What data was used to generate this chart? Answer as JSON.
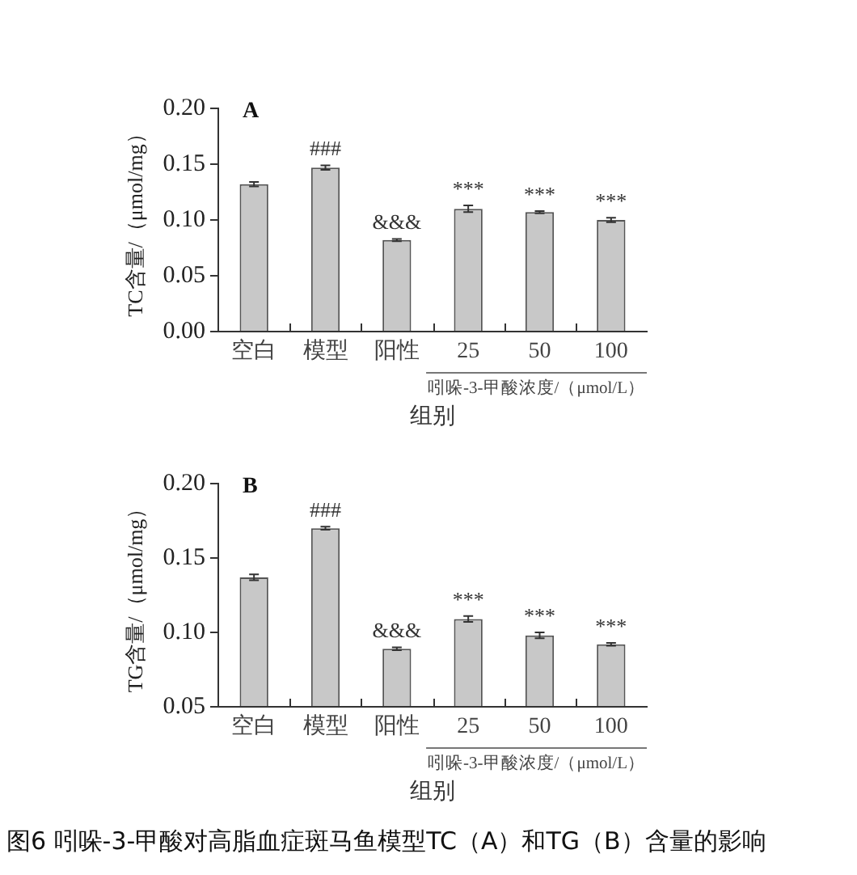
{
  "chart_data": [
    {
      "type": "bar",
      "title": "A",
      "ylabel": "TC含量/（μmol/mg）",
      "xlabel": "组别",
      "categories": [
        "空白",
        "模型",
        "阳性",
        "25",
        "50",
        "100"
      ],
      "values": [
        0.132,
        0.147,
        0.082,
        0.11,
        0.107,
        0.1
      ],
      "errors": [
        0.002,
        0.002,
        0.001,
        0.003,
        0.001,
        0.002
      ],
      "color": "#c8c8c8",
      "ylim": [
        0,
        0.2
      ],
      "yticks": [
        {
          "value": 0,
          "label": "0.00"
        },
        {
          "value": 0.05,
          "label": "0.05"
        },
        {
          "value": 0.1,
          "label": "0.10"
        },
        {
          "value": 0.15,
          "label": "0.15"
        },
        {
          "value": 0.2,
          "label": "0.20"
        }
      ],
      "annotations": [
        {
          "text": "###",
          "x": "模型",
          "y": 0.147
        },
        {
          "text": "&&&",
          "x": "阳性",
          "y": 0.082
        },
        {
          "text": "***",
          "x": "25",
          "y": 0.11
        },
        {
          "text": "***",
          "x": "50",
          "y": 0.107
        },
        {
          "text": "***",
          "x": "100",
          "y": 0.1
        },
        "吲哚-3-甲酸浓度/（μmol/L）"
      ]
    },
    {
      "type": "bar",
      "title": "B",
      "ylabel": "TG含量/（μmol/mg）",
      "xlabel": "组别",
      "categories": [
        "空白",
        "模型",
        "阳性",
        "25",
        "50",
        "100"
      ],
      "values": [
        0.137,
        0.17,
        0.089,
        0.109,
        0.098,
        0.092
      ],
      "errors": [
        0.002,
        0.001,
        0.001,
        0.002,
        0.002,
        0.001
      ],
      "color": "#c8c8c8",
      "ylim": [
        0.05,
        0.2
      ],
      "yticks": [
        {
          "value": 0.05,
          "label": "0.05"
        },
        {
          "value": 0.1,
          "label": "0.10"
        },
        {
          "value": 0.15,
          "label": "0.15"
        },
        {
          "value": 0.2,
          "label": "0.20"
        }
      ],
      "annotations": [
        {
          "text": "###",
          "x": "模型",
          "y": 0.17
        },
        {
          "text": "&&&",
          "x": "阳性",
          "y": 0.089
        },
        {
          "text": "***",
          "x": "25",
          "y": 0.109
        },
        {
          "text": "***",
          "x": "50",
          "y": 0.098
        },
        {
          "text": "***",
          "x": "100",
          "y": 0.092
        },
        "吲哚-3-甲酸浓度/（μmol/L）",
        "图6 吲哚-3-甲酸对高脂血症斑马鱼模型TC（A）和TG（B）含量的影响"
      ]
    }
  ]
}
